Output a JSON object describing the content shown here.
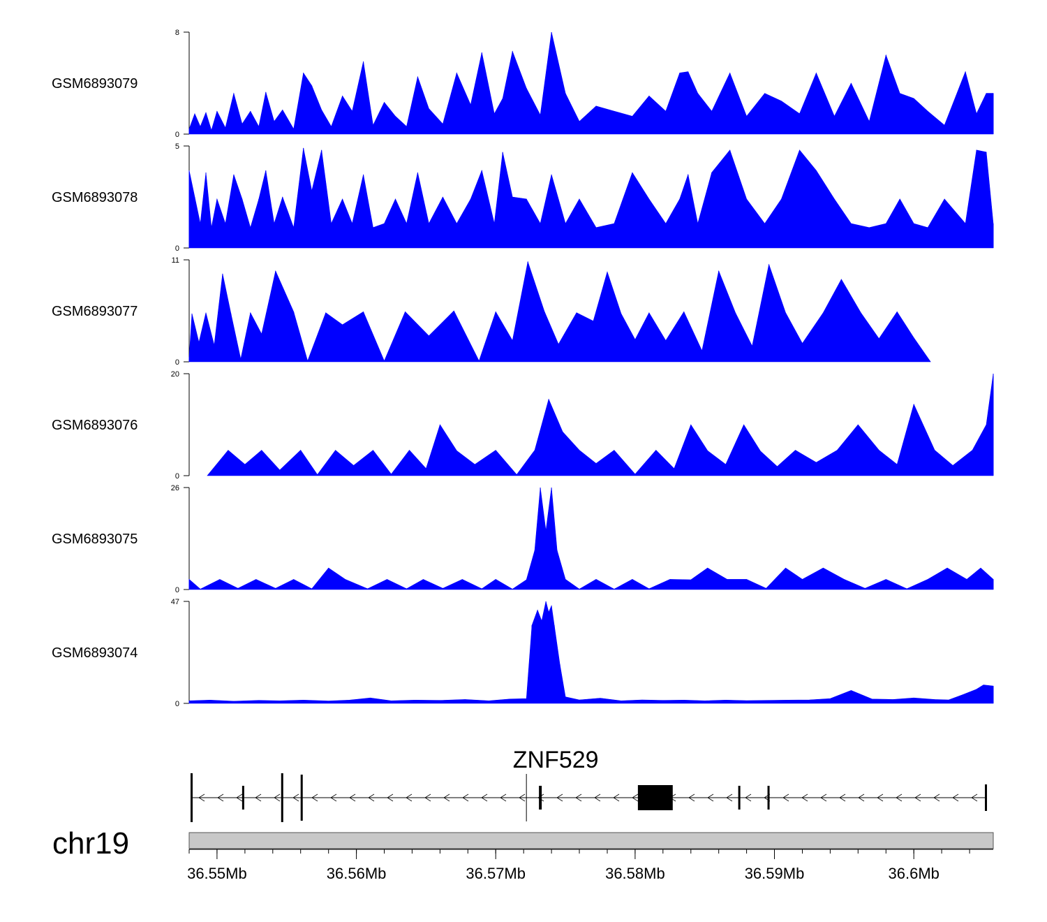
{
  "colors": {
    "signal": "#0000ff",
    "axis": "#000000",
    "ideogram": "#c8c8c8",
    "gene": "#000000"
  },
  "chart_data": {
    "type": "area",
    "title": "",
    "genomic_range": [
      36.548,
      36.6057
    ],
    "chromosome": "chr19",
    "gene": {
      "name": "ZNF529",
      "strand": "-",
      "start": 36.5481,
      "end": 36.6052,
      "exons": [
        [
          36.5481,
          36.5482
        ],
        [
          36.5518,
          36.5519
        ],
        [
          36.5546,
          36.5547
        ],
        [
          36.556,
          36.5561
        ],
        [
          36.5731,
          36.5733
        ],
        [
          36.5802,
          36.5827
        ],
        [
          36.5874,
          36.5875
        ],
        [
          36.5895,
          36.5896
        ],
        [
          36.6051,
          36.6052
        ]
      ],
      "label_marker": 36.5722
    },
    "x_ticks": [
      36.55,
      36.56,
      36.57,
      36.58,
      36.59,
      36.6
    ],
    "x_tick_labels": [
      "36.55Mb",
      "36.56Mb",
      "36.57Mb",
      "36.58Mb",
      "36.59Mb",
      "36.6Mb"
    ],
    "tracks": [
      {
        "name": "GSM6893079",
        "ylim": [
          0,
          8
        ],
        "ytick_labels": [
          "0",
          "8"
        ],
        "x": [
          36.548,
          36.5484,
          36.5488,
          36.5492,
          36.5496,
          36.55,
          36.5506,
          36.5512,
          36.5518,
          36.5524,
          36.553,
          36.5535,
          36.5541,
          36.5547,
          36.5555,
          36.5562,
          36.5568,
          36.5575,
          36.5582,
          36.559,
          36.5597,
          36.5605,
          36.5612,
          36.562,
          36.5628,
          36.5636,
          36.5644,
          36.5652,
          36.5662,
          36.5672,
          36.5682,
          36.569,
          36.5699,
          36.5705,
          36.5712,
          36.5722,
          36.5732,
          36.574,
          36.575,
          36.576,
          36.5772,
          36.5785,
          36.5798,
          36.581,
          36.5822,
          36.5832,
          36.5838,
          36.5845,
          36.5855,
          36.5868,
          36.588,
          36.5893,
          36.5905,
          36.5918,
          36.593,
          36.5943,
          36.5955,
          36.5968,
          36.598,
          36.599,
          36.6,
          36.601,
          36.6022,
          36.6037,
          36.6045,
          36.6052,
          36.6057
        ],
        "values": [
          0.4,
          1.6,
          0.6,
          1.7,
          0.3,
          1.8,
          0.5,
          3.2,
          0.8,
          1.8,
          0.6,
          3.3,
          1.0,
          1.9,
          0.4,
          4.8,
          3.8,
          1.9,
          0.6,
          3.0,
          1.8,
          5.7,
          0.7,
          2.5,
          1.4,
          0.6,
          4.5,
          2.0,
          0.8,
          4.8,
          2.3,
          6.4,
          1.6,
          2.8,
          6.5,
          3.6,
          1.5,
          8.0,
          3.2,
          1.0,
          2.2,
          1.8,
          1.4,
          3.0,
          1.8,
          4.8,
          4.9,
          3.2,
          1.8,
          4.8,
          1.4,
          3.2,
          2.6,
          1.6,
          4.8,
          1.4,
          4.0,
          1.0,
          6.2,
          3.2,
          2.8,
          1.8,
          0.7,
          4.9,
          1.6,
          3.2,
          3.2
        ]
      },
      {
        "name": "GSM6893078",
        "ylim": [
          0,
          5
        ],
        "ytick_labels": [
          "0",
          "5"
        ],
        "x": [
          36.548,
          36.5484,
          36.5488,
          36.5492,
          36.5496,
          36.55,
          36.5506,
          36.5512,
          36.5518,
          36.5524,
          36.553,
          36.5535,
          36.5541,
          36.5547,
          36.5555,
          36.5562,
          36.5568,
          36.5575,
          36.5582,
          36.559,
          36.5597,
          36.5605,
          36.5612,
          36.562,
          36.5628,
          36.5636,
          36.5644,
          36.5652,
          36.5662,
          36.5672,
          36.5682,
          36.569,
          36.5699,
          36.5705,
          36.5712,
          36.5722,
          36.5732,
          36.574,
          36.575,
          36.576,
          36.5772,
          36.5785,
          36.5798,
          36.581,
          36.5822,
          36.5832,
          36.5838,
          36.5845,
          36.5855,
          36.5868,
          36.588,
          36.5893,
          36.5905,
          36.5918,
          36.593,
          36.5943,
          36.5955,
          36.5968,
          36.598,
          36.599,
          36.6,
          36.601,
          36.6022,
          36.6037,
          36.6045,
          36.6052,
          36.6057
        ],
        "values": [
          3.8,
          2.5,
          1.2,
          3.7,
          1.0,
          2.4,
          1.2,
          3.6,
          2.4,
          1.0,
          2.4,
          3.8,
          1.2,
          2.5,
          1.0,
          4.9,
          2.8,
          4.8,
          1.2,
          2.4,
          1.2,
          3.6,
          1.0,
          1.2,
          2.4,
          1.2,
          3.7,
          1.2,
          2.5,
          1.2,
          2.4,
          3.8,
          1.2,
          4.7,
          2.5,
          2.4,
          1.2,
          3.6,
          1.2,
          2.4,
          1.0,
          1.2,
          3.7,
          2.4,
          1.2,
          2.4,
          3.6,
          1.2,
          3.7,
          4.8,
          2.4,
          1.2,
          2.4,
          4.8,
          3.8,
          2.4,
          1.2,
          1.0,
          1.2,
          2.4,
          1.2,
          1.0,
          2.4,
          1.2,
          4.8,
          4.7,
          1.2
        ]
      },
      {
        "name": "GSM6893077",
        "ylim": [
          0,
          11
        ],
        "ytick_labels": [
          "0",
          "11"
        ],
        "x": [
          36.548,
          36.5482,
          36.5487,
          36.5492,
          36.5498,
          36.5504,
          36.551,
          36.5517,
          36.5524,
          36.5532,
          36.5542,
          36.5555,
          36.5565,
          36.5578,
          36.559,
          36.5605,
          36.562,
          36.5635,
          36.5652,
          36.567,
          36.5688,
          36.57,
          36.5712,
          36.5723,
          36.5735,
          36.5745,
          36.5758,
          36.577,
          36.578,
          36.579,
          36.58,
          36.581,
          36.5822,
          36.5835,
          36.5848,
          36.586,
          36.5872,
          36.5884,
          36.5896,
          36.5908,
          36.592,
          36.5935,
          36.5948,
          36.5962,
          36.5975,
          36.5988,
          36.6,
          36.6012
        ],
        "values": [
          0.5,
          5.2,
          2.1,
          5.3,
          1.8,
          9.5,
          5.2,
          0.3,
          5.3,
          3.0,
          9.8,
          5.4,
          0.1,
          5.3,
          4.0,
          5.4,
          0.1,
          5.4,
          2.8,
          5.5,
          0.1,
          5.4,
          2.3,
          10.8,
          5.4,
          1.9,
          5.3,
          4.4,
          9.7,
          5.2,
          2.4,
          5.3,
          2.3,
          5.4,
          1.2,
          9.8,
          5.3,
          1.7,
          10.5,
          5.3,
          2.0,
          5.3,
          8.9,
          5.3,
          2.5,
          5.4,
          2.6,
          0.0
        ]
      },
      {
        "name": "GSM6893076",
        "ylim": [
          0,
          20
        ],
        "ytick_labels": [
          "0",
          "20"
        ],
        "x": [
          36.5493,
          36.5508,
          36.552,
          36.5532,
          36.5545,
          36.556,
          36.5572,
          36.5585,
          36.5598,
          36.5612,
          36.5625,
          36.5638,
          36.565,
          36.566,
          36.5672,
          36.5685,
          36.57,
          36.5715,
          36.5728,
          36.5738,
          36.5748,
          36.576,
          36.5772,
          36.5785,
          36.58,
          36.5815,
          36.5828,
          36.584,
          36.5852,
          36.5865,
          36.5878,
          36.589,
          36.5902,
          36.5915,
          36.593,
          36.5945,
          36.596,
          36.5975,
          36.5988,
          36.6,
          36.6015,
          36.6028,
          36.6042,
          36.6052,
          36.6057
        ],
        "values": [
          0.0,
          5.0,
          2.2,
          5.0,
          1.1,
          5.0,
          0.2,
          5.0,
          2.0,
          5.0,
          0.3,
          5.0,
          1.4,
          10.0,
          4.9,
          2.2,
          5.0,
          0.2,
          5.0,
          15.0,
          8.6,
          5.0,
          2.4,
          5.0,
          0.3,
          5.0,
          1.4,
          10.0,
          4.9,
          2.2,
          10.0,
          4.8,
          1.8,
          5.0,
          2.6,
          5.0,
          10.0,
          5.0,
          2.2,
          14.0,
          5.0,
          2.0,
          5.0,
          10.0,
          20.0
        ]
      },
      {
        "name": "GSM6893075",
        "ylim": [
          0,
          26
        ],
        "ytick_labels": [
          "0",
          "26"
        ],
        "x": [
          36.548,
          36.5488,
          36.5502,
          36.5515,
          36.5528,
          36.5542,
          36.5555,
          36.5568,
          36.558,
          36.5592,
          36.5608,
          36.5622,
          36.5636,
          36.5648,
          36.5662,
          36.5676,
          36.569,
          36.57,
          36.5712,
          36.5722,
          36.5728,
          36.5732,
          36.5736,
          36.574,
          36.5744,
          36.575,
          36.576,
          36.5772,
          36.5785,
          36.5798,
          36.581,
          36.5825,
          36.584,
          36.5852,
          36.5866,
          36.588,
          36.5894,
          36.5908,
          36.592,
          36.5935,
          36.595,
          36.5965,
          36.598,
          36.5995,
          36.601,
          36.6024,
          36.6038,
          36.6048,
          36.6057
        ],
        "values": [
          2.6,
          0.1,
          2.6,
          0.3,
          2.6,
          0.3,
          2.6,
          0.2,
          5.5,
          2.6,
          0.2,
          2.6,
          0.2,
          2.6,
          0.3,
          2.6,
          0.2,
          2.6,
          0.1,
          2.5,
          10.0,
          26.0,
          15.0,
          26.0,
          10.0,
          2.6,
          0.1,
          2.6,
          0.1,
          2.6,
          0.2,
          2.6,
          2.5,
          5.5,
          2.6,
          2.6,
          0.3,
          5.5,
          2.6,
          5.5,
          2.6,
          0.3,
          2.6,
          0.2,
          2.6,
          5.5,
          2.6,
          5.5,
          2.6
        ]
      },
      {
        "name": "GSM6893074",
        "ylim": [
          0,
          47
        ],
        "ytick_labels": [
          "0",
          "47"
        ],
        "x": [
          36.548,
          36.5495,
          36.5512,
          36.553,
          36.5545,
          36.5562,
          36.558,
          36.5595,
          36.561,
          36.5625,
          36.5642,
          36.566,
          36.5678,
          36.5695,
          36.571,
          36.5722,
          36.5726,
          36.573,
          36.5733,
          36.5736,
          36.5738,
          36.574,
          36.5742,
          36.5746,
          36.575,
          36.576,
          36.5775,
          36.579,
          36.5805,
          36.582,
          36.5835,
          36.585,
          36.5865,
          36.588,
          36.5895,
          36.591,
          36.5925,
          36.594,
          36.5955,
          36.597,
          36.5985,
          36.6,
          36.6015,
          36.6025,
          36.6035,
          36.6045,
          36.605,
          36.6057
        ],
        "values": [
          1.2,
          1.5,
          1.0,
          1.4,
          1.2,
          1.5,
          1.1,
          1.5,
          2.5,
          1.2,
          1.5,
          1.4,
          1.8,
          1.2,
          2.0,
          2.2,
          36.0,
          43.0,
          38.0,
          47.0,
          42.0,
          45.0,
          36.0,
          18.0,
          3.0,
          1.6,
          2.4,
          1.2,
          1.6,
          1.4,
          1.5,
          1.2,
          1.5,
          1.3,
          1.4,
          1.5,
          1.6,
          2.2,
          6.0,
          2.0,
          1.8,
          2.5,
          1.8,
          1.6,
          4.0,
          6.5,
          8.5,
          8.0
        ]
      }
    ]
  }
}
